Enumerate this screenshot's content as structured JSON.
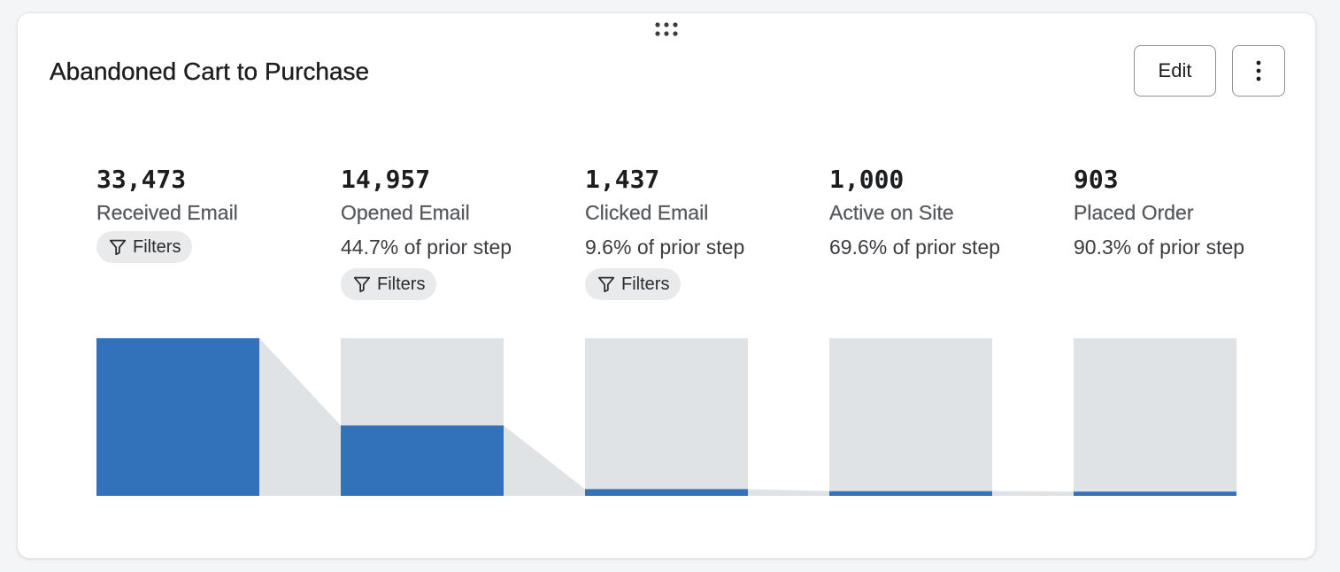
{
  "card": {
    "title": "Abandoned Cart to Purchase",
    "edit_label": "Edit",
    "more_icon": "vertical-ellipsis-icon",
    "drag_icon": "drag-handle-dots-icon"
  },
  "colors": {
    "bar": "#3272ba",
    "track": "#e0e3e5",
    "connector": "#e0e3e5"
  },
  "steps": [
    {
      "value": "33,473",
      "label": "Received Email",
      "pct": "",
      "filters": "Filters"
    },
    {
      "value": "14,957",
      "label": "Opened Email",
      "pct": "44.7% of prior step",
      "filters": "Filters"
    },
    {
      "value": "1,437",
      "label": "Clicked Email",
      "pct": "9.6% of prior step",
      "filters": "Filters"
    },
    {
      "value": "1,000",
      "label": "Active on Site",
      "pct": "69.6% of prior step",
      "filters": ""
    },
    {
      "value": "903",
      "label": "Placed Order",
      "pct": "90.3% of prior step",
      "filters": ""
    }
  ],
  "chart_data": {
    "type": "bar",
    "categories": [
      "Received Email",
      "Opened Email",
      "Clicked Email",
      "Active on Site",
      "Placed Order"
    ],
    "values": [
      33473,
      14957,
      1437,
      1000,
      903
    ],
    "conversion_pct_of_prior": [
      null,
      44.7,
      9.6,
      69.6,
      90.3
    ],
    "title": "Abandoned Cart to Purchase",
    "xlabel": "",
    "ylabel": "",
    "ylim": [
      0,
      33473
    ],
    "grid": false,
    "legend": "none"
  }
}
